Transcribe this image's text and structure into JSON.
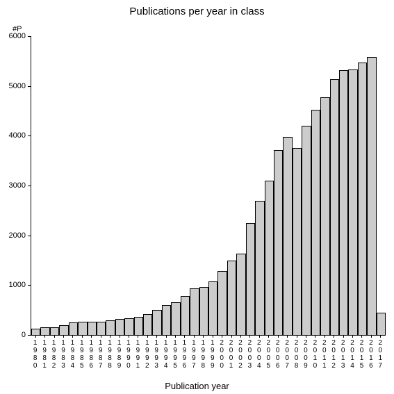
{
  "chart": {
    "type": "bar",
    "title": "Publications per year in class",
    "title_fontsize": 15,
    "y_unit_label": "#P",
    "x_axis_title": "Publication year",
    "x_axis_title_fontsize": 13,
    "background_color": "#ffffff",
    "axis_color": "#000000",
    "bar_fill_color": "#cccccc",
    "bar_border_color": "#000000",
    "bar_width": 1.0,
    "ylim": [
      0,
      6000
    ],
    "y_ticks": [
      0,
      1000,
      2000,
      3000,
      4000,
      5000,
      6000
    ],
    "tick_label_fontsize": 11,
    "x_tick_label_fontsize": 10,
    "categories": [
      "1980",
      "1981",
      "1982",
      "1983",
      "1984",
      "1985",
      "1986",
      "1987",
      "1988",
      "1989",
      "1990",
      "1991",
      "1992",
      "1993",
      "1994",
      "1995",
      "1996",
      "1997",
      "1998",
      "1999",
      "2000",
      "2001",
      "2002",
      "2003",
      "2004",
      "2005",
      "2006",
      "2007",
      "2008",
      "2009",
      "2010",
      "2011",
      "2012",
      "2013",
      "2014",
      "2015",
      "2016",
      "2017"
    ],
    "values": [
      120,
      150,
      150,
      200,
      250,
      260,
      270,
      270,
      300,
      320,
      340,
      360,
      420,
      500,
      600,
      660,
      780,
      940,
      960,
      1080,
      1280,
      1500,
      1630,
      2240,
      2700,
      3100,
      3710,
      3980,
      3760,
      4200,
      4520,
      4770,
      5140,
      5320,
      5330,
      5470,
      5580,
      440
    ]
  }
}
